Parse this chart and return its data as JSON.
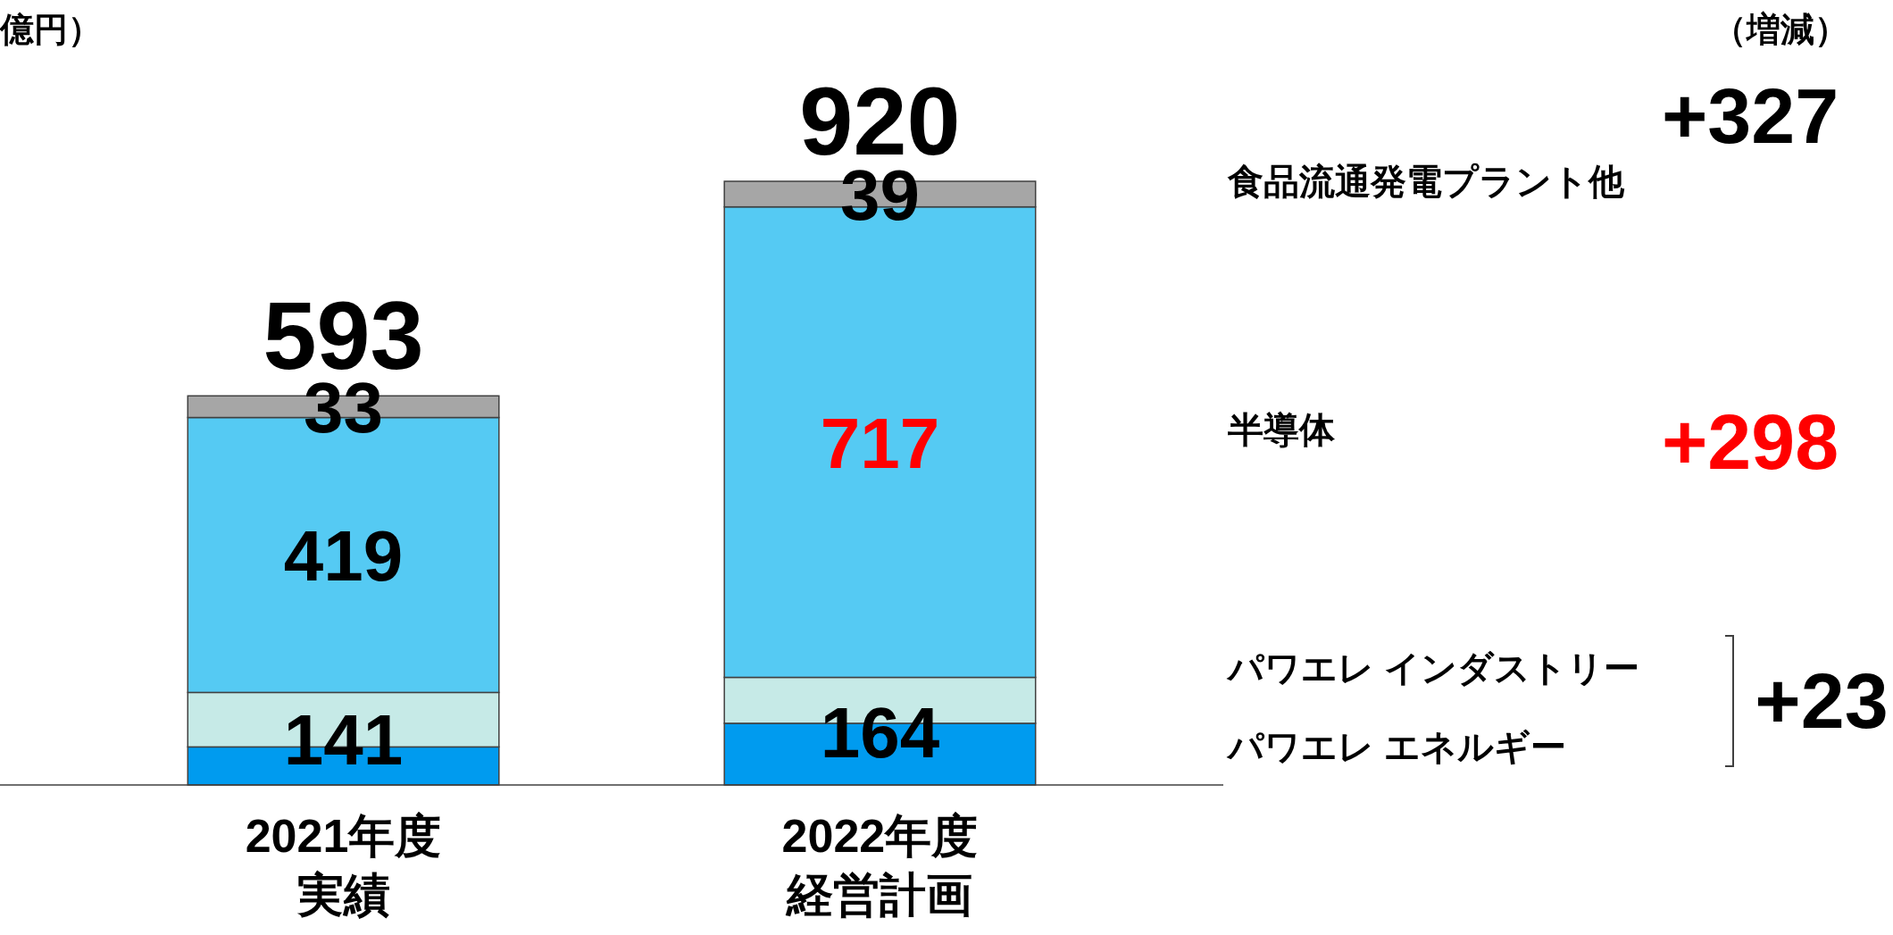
{
  "chart_data": {
    "type": "bar",
    "stacked": true,
    "ylabel": "億円）",
    "categories": [
      "2021年度実績",
      "2022年度経営計画"
    ],
    "series": [
      {
        "name": "パワエレ エネルギー",
        "color": "#009bef",
        "values": [
          58,
          94
        ]
      },
      {
        "name": "パワエレ インダストリー",
        "color": "#c6eae7",
        "values": [
          83,
          70
        ]
      },
      {
        "name": "半導体",
        "color": "#55caf3",
        "values": [
          419,
          717
        ],
        "value_labels": [
          "419",
          "717"
        ]
      },
      {
        "name": "食品流通発電プラント他",
        "color": "#a6a6a6",
        "values": [
          33,
          39
        ],
        "value_labels": [
          "33",
          "39"
        ]
      }
    ],
    "totals": [
      "593",
      "920"
    ],
    "legend": "right",
    "annotations": [
      "（増減）",
      "+327",
      "+298",
      "+23",
      "141",
      "164"
    ]
  }
}
